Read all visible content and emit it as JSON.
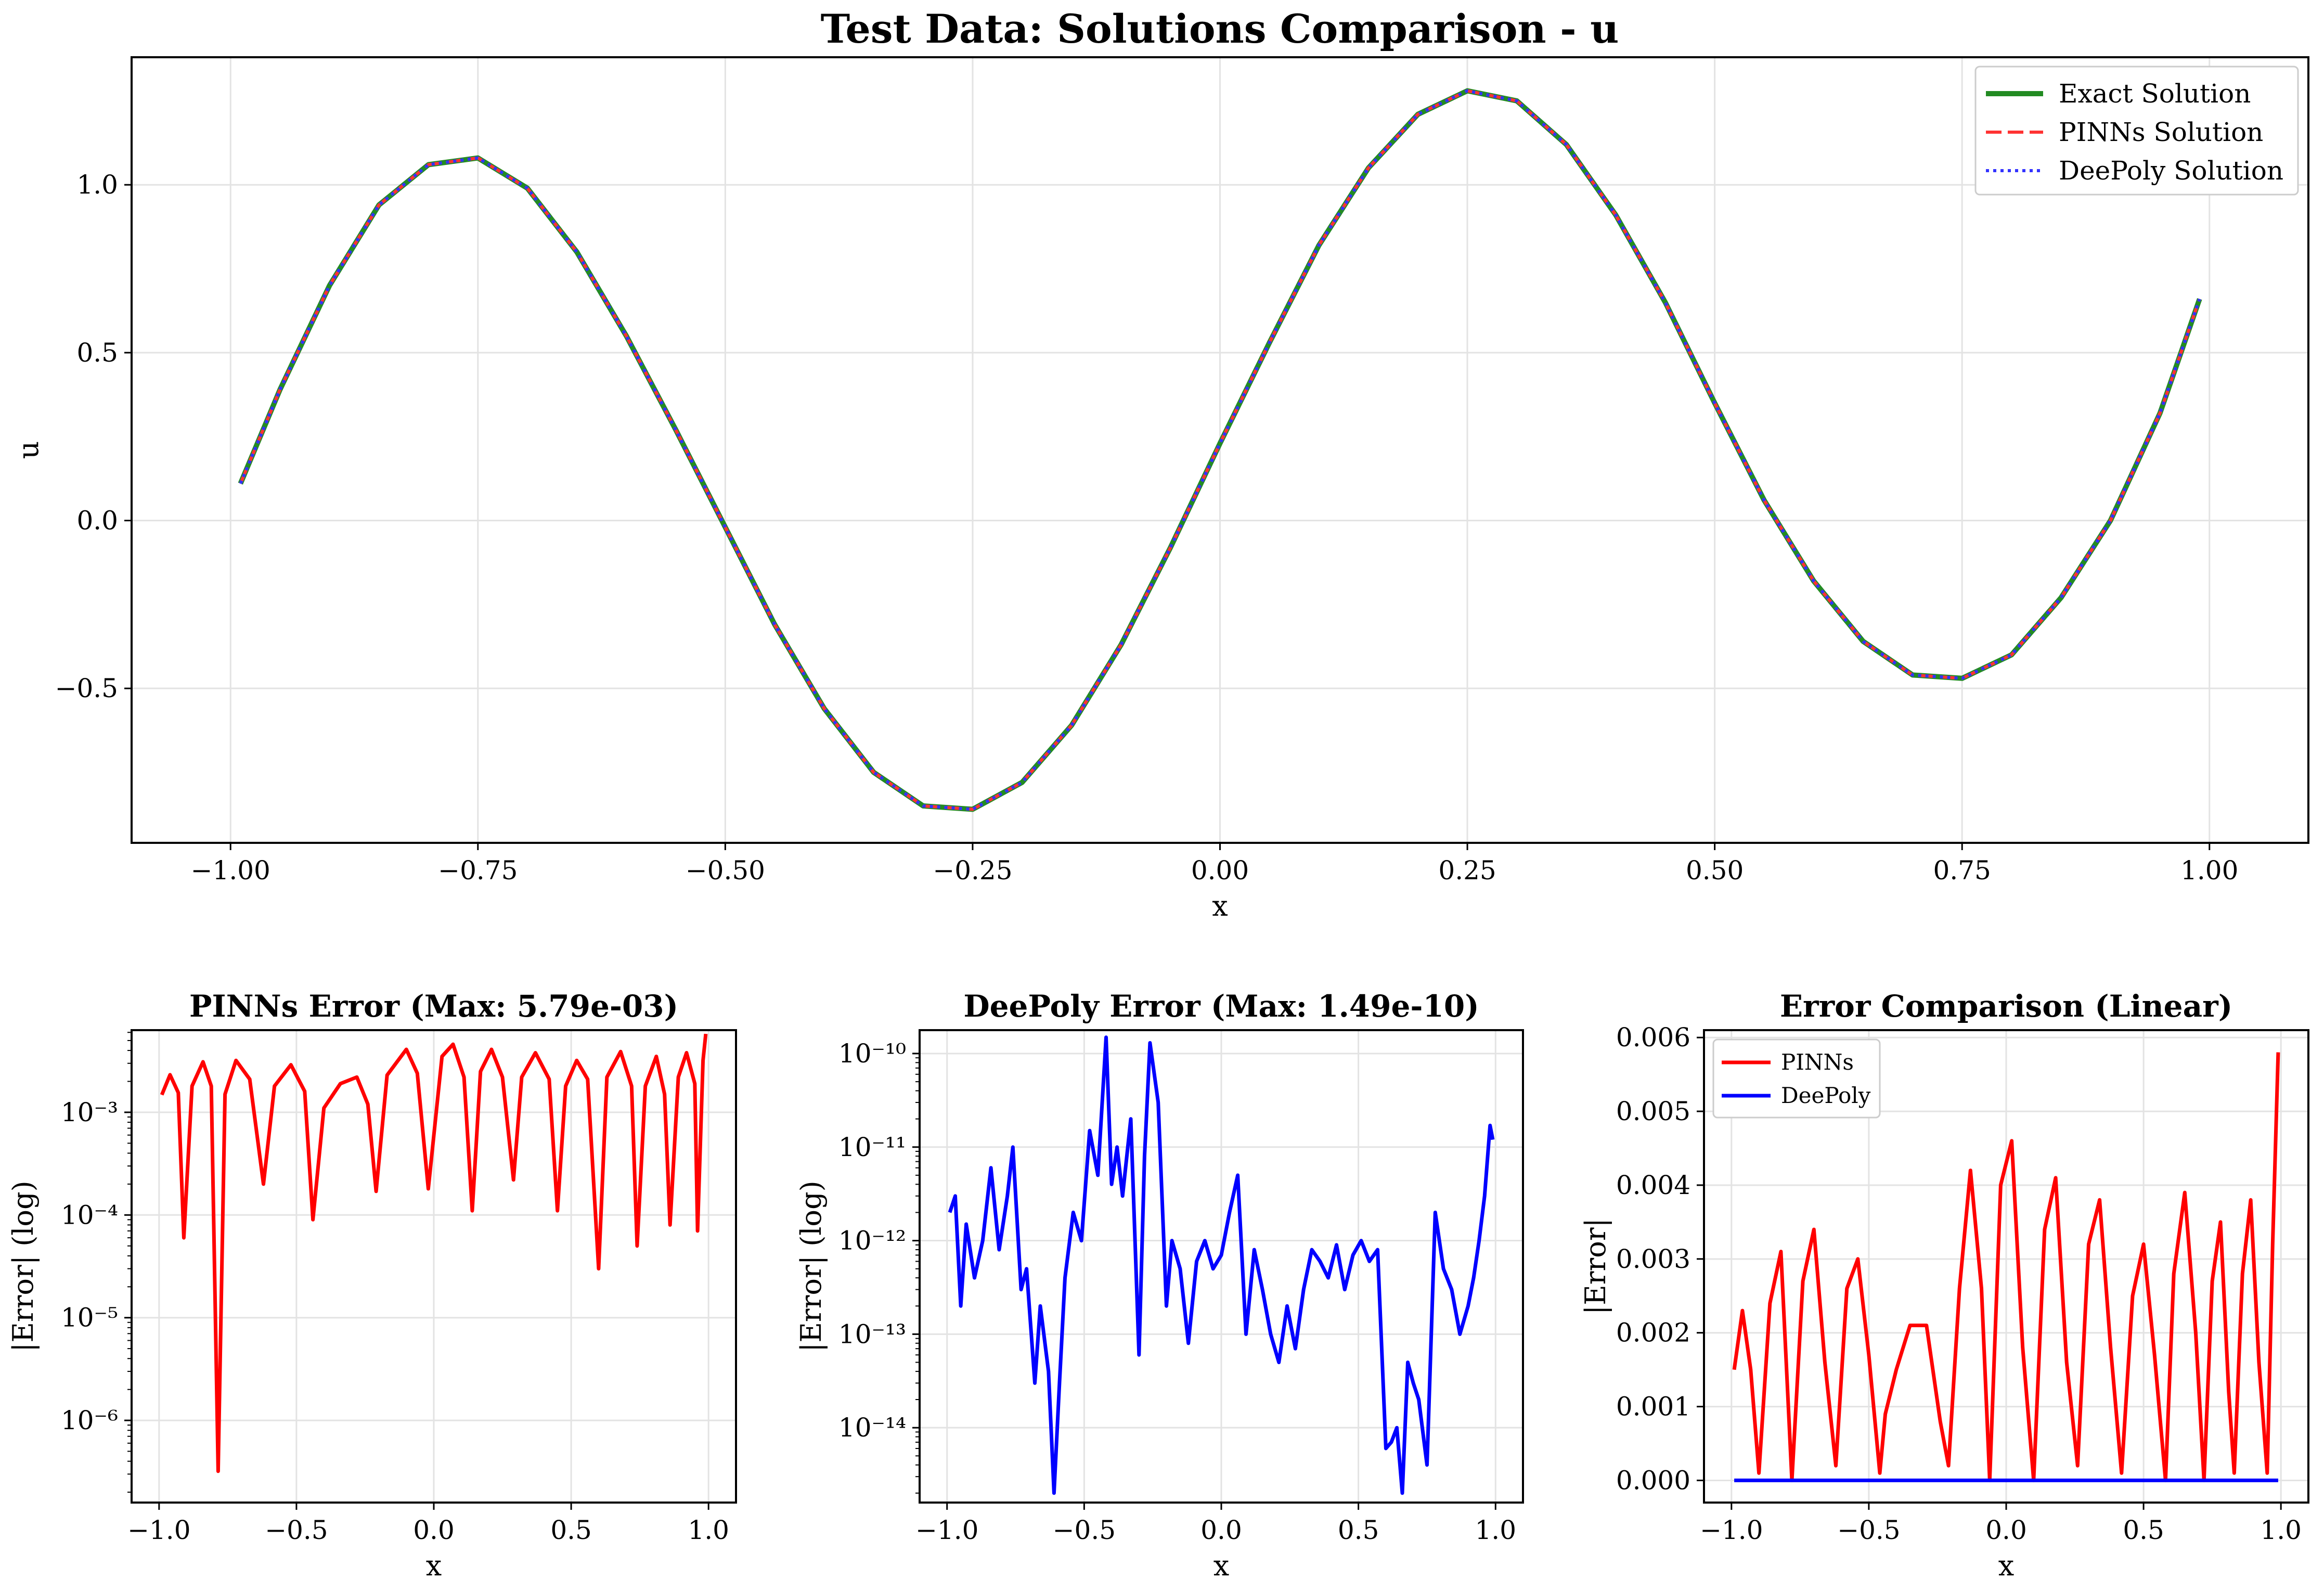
{
  "figure": {
    "title": "Test Data: Solutions Comparison - u"
  },
  "chart_data": [
    {
      "id": "main",
      "type": "line",
      "title": "Test Data: Solutions Comparison - u",
      "xlabel": "x",
      "ylabel": "u",
      "xlim": [
        -1.1,
        1.1
      ],
      "ylim": [
        -0.96,
        1.38
      ],
      "xticks": [
        -1.0,
        -0.75,
        -0.5,
        -0.25,
        0.0,
        0.25,
        0.5,
        0.75,
        1.0
      ],
      "xtick_labels": [
        "−1.00",
        "−0.75",
        "−0.50",
        "−0.25",
        "0.00",
        "0.25",
        "0.50",
        "0.75",
        "1.00"
      ],
      "yticks": [
        -0.5,
        0.0,
        0.5,
        1.0
      ],
      "ytick_labels": [
        "−0.5",
        "0.0",
        "0.5",
        "1.0"
      ],
      "grid": true,
      "legend": "upper right",
      "x": [
        -0.99,
        -0.95,
        -0.9,
        -0.85,
        -0.8,
        -0.75,
        -0.7,
        -0.65,
        -0.6,
        -0.55,
        -0.5,
        -0.45,
        -0.4,
        -0.35,
        -0.3,
        -0.25,
        -0.2,
        -0.15,
        -0.1,
        -0.05,
        0.0,
        0.05,
        0.1,
        0.15,
        0.2,
        0.25,
        0.3,
        0.35,
        0.4,
        0.45,
        0.5,
        0.55,
        0.6,
        0.65,
        0.7,
        0.75,
        0.8,
        0.85,
        0.9,
        0.95,
        0.99
      ],
      "series": [
        {
          "name": "Exact Solution",
          "color": "#228b22",
          "style": "solid",
          "y": [
            0.11,
            0.39,
            0.7,
            0.94,
            1.06,
            1.08,
            0.99,
            0.8,
            0.55,
            0.27,
            -0.02,
            -0.31,
            -0.56,
            -0.75,
            -0.85,
            -0.86,
            -0.78,
            -0.61,
            -0.37,
            -0.08,
            0.23,
            0.53,
            0.82,
            1.05,
            1.21,
            1.28,
            1.25,
            1.12,
            0.91,
            0.65,
            0.35,
            0.06,
            -0.18,
            -0.36,
            -0.46,
            -0.47,
            -0.4,
            -0.23,
            0.0,
            0.32,
            0.66
          ]
        },
        {
          "name": "PINNs Solution",
          "color": "#ff3333",
          "style": "dashed",
          "y": [
            0.11,
            0.39,
            0.7,
            0.94,
            1.06,
            1.08,
            0.99,
            0.8,
            0.55,
            0.27,
            -0.02,
            -0.31,
            -0.56,
            -0.75,
            -0.85,
            -0.86,
            -0.78,
            -0.61,
            -0.37,
            -0.08,
            0.23,
            0.53,
            0.82,
            1.05,
            1.21,
            1.28,
            1.25,
            1.12,
            0.91,
            0.65,
            0.35,
            0.06,
            -0.18,
            -0.36,
            -0.46,
            -0.47,
            -0.4,
            -0.23,
            0.0,
            0.32,
            0.66
          ]
        },
        {
          "name": "DeePoly Solution",
          "color": "#3333ff",
          "style": "dotted",
          "y": [
            0.11,
            0.39,
            0.7,
            0.94,
            1.06,
            1.08,
            0.99,
            0.8,
            0.55,
            0.27,
            -0.02,
            -0.31,
            -0.56,
            -0.75,
            -0.85,
            -0.86,
            -0.78,
            -0.61,
            -0.37,
            -0.08,
            0.23,
            0.53,
            0.82,
            1.05,
            1.21,
            1.28,
            1.25,
            1.12,
            0.91,
            0.65,
            0.35,
            0.06,
            -0.18,
            -0.36,
            -0.46,
            -0.47,
            -0.4,
            -0.23,
            0.0,
            0.32,
            0.66
          ]
        }
      ]
    },
    {
      "id": "pinns_err",
      "type": "line",
      "title": "PINNs Error (Max: 5.79e-03)",
      "xlabel": "x",
      "ylabel": "|Error| (log)",
      "yscale": "log",
      "xlim": [
        -1.1,
        1.1
      ],
      "ylim_exp": [
        -6.8,
        -2.2
      ],
      "xticks": [
        -1.0,
        -0.5,
        0.0,
        0.5,
        1.0
      ],
      "xtick_labels": [
        "−1.0",
        "−0.5",
        "0.0",
        "0.5",
        "1.0"
      ],
      "yticks_exp": [
        -6,
        -5,
        -4,
        -3
      ],
      "ytick_labels": [
        "10⁻⁶",
        "10⁻⁵",
        "10⁻⁴",
        "10⁻³"
      ],
      "grid": true,
      "series": [
        {
          "name": "PINNs",
          "color": "#ff0000",
          "x": [
            -0.99,
            -0.96,
            -0.93,
            -0.91,
            -0.88,
            -0.84,
            -0.81,
            -0.785,
            -0.76,
            -0.72,
            -0.67,
            -0.62,
            -0.58,
            -0.52,
            -0.47,
            -0.44,
            -0.4,
            -0.34,
            -0.28,
            -0.24,
            -0.21,
            -0.17,
            -0.1,
            -0.06,
            -0.02,
            0.03,
            0.07,
            0.11,
            0.14,
            0.17,
            0.21,
            0.25,
            0.29,
            0.32,
            0.37,
            0.42,
            0.45,
            0.48,
            0.52,
            0.56,
            0.6,
            0.63,
            0.68,
            0.72,
            0.74,
            0.77,
            0.81,
            0.84,
            0.86,
            0.89,
            0.92,
            0.95,
            0.96,
            0.98,
            0.99
          ],
          "y": [
            0.00148,
            0.00232,
            0.00155,
            6e-05,
            0.0018,
            0.0031,
            0.0018,
            3.2e-07,
            0.0015,
            0.0032,
            0.0021,
            0.0002,
            0.0018,
            0.0029,
            0.0016,
            9e-05,
            0.0011,
            0.0019,
            0.0022,
            0.0012,
            0.00017,
            0.0023,
            0.0041,
            0.0024,
            0.00018,
            0.0035,
            0.0046,
            0.0022,
            0.00011,
            0.0025,
            0.0041,
            0.0022,
            0.00022,
            0.0022,
            0.0038,
            0.0021,
            0.00011,
            0.0018,
            0.0032,
            0.0021,
            3e-05,
            0.0022,
            0.0039,
            0.0018,
            5e-05,
            0.0018,
            0.0035,
            0.0015,
            8e-05,
            0.0022,
            0.0038,
            0.0019,
            7e-05,
            0.0032,
            0.0058
          ]
        }
      ]
    },
    {
      "id": "deepoly_err",
      "type": "line",
      "title": "DeePoly Error (Max: 1.49e-10)",
      "xlabel": "x",
      "ylabel": "|Error| (log)",
      "yscale": "log",
      "xlim": [
        -1.1,
        1.1
      ],
      "ylim_exp": [
        -14.8,
        -9.75
      ],
      "xticks": [
        -1.0,
        -0.5,
        0.0,
        0.5,
        1.0
      ],
      "xtick_labels": [
        "−1.0",
        "−0.5",
        "0.0",
        "0.5",
        "1.0"
      ],
      "yticks_exp": [
        -14,
        -13,
        -12,
        -11,
        -10
      ],
      "ytick_labels": [
        "10⁻¹⁴",
        "10⁻¹³",
        "10⁻¹²",
        "10⁻¹¹",
        "10⁻¹⁰"
      ],
      "grid": true,
      "series": [
        {
          "name": "DeePoly",
          "color": "#0000ff",
          "x": [
            -0.99,
            -0.97,
            -0.95,
            -0.93,
            -0.9,
            -0.87,
            -0.84,
            -0.81,
            -0.78,
            -0.76,
            -0.73,
            -0.71,
            -0.68,
            -0.66,
            -0.63,
            -0.61,
            -0.59,
            -0.57,
            -0.54,
            -0.51,
            -0.48,
            -0.45,
            -0.42,
            -0.4,
            -0.38,
            -0.36,
            -0.33,
            -0.3,
            -0.28,
            -0.26,
            -0.23,
            -0.2,
            -0.18,
            -0.15,
            -0.12,
            -0.09,
            -0.06,
            -0.03,
            0.0,
            0.03,
            0.06,
            0.09,
            0.12,
            0.15,
            0.18,
            0.21,
            0.24,
            0.27,
            0.3,
            0.33,
            0.36,
            0.39,
            0.42,
            0.45,
            0.48,
            0.51,
            0.54,
            0.57,
            0.6,
            0.62,
            0.64,
            0.66,
            0.68,
            0.7,
            0.72,
            0.75,
            0.78,
            0.81,
            0.84,
            0.87,
            0.9,
            0.92,
            0.94,
            0.96,
            0.98,
            0.99
          ],
          "y": [
            2e-12,
            3e-12,
            2e-13,
            1.5e-12,
            4e-13,
            1e-12,
            6e-12,
            8e-13,
            3e-12,
            1e-11,
            3e-13,
            5e-13,
            3e-14,
            2e-13,
            4e-14,
            2e-15,
            3e-14,
            4e-13,
            2e-12,
            1e-12,
            1.5e-11,
            5e-12,
            1.49e-10,
            4e-12,
            1e-11,
            3e-12,
            2e-11,
            6e-14,
            8e-12,
            1.3e-10,
            3e-11,
            2e-13,
            1e-12,
            5e-13,
            8e-14,
            6e-13,
            1e-12,
            5e-13,
            7e-13,
            2e-12,
            5e-12,
            1e-13,
            8e-13,
            3e-13,
            1e-13,
            5e-14,
            2e-13,
            7e-14,
            3e-13,
            8e-13,
            6e-13,
            4e-13,
            9e-13,
            3e-13,
            7e-13,
            1e-12,
            6e-13,
            8e-13,
            6e-15,
            7e-15,
            1e-14,
            2e-15,
            5e-14,
            3e-14,
            2e-14,
            4e-15,
            2e-12,
            5e-13,
            3e-13,
            1e-13,
            2e-13,
            4e-13,
            1e-12,
            3e-12,
            1.7e-11,
            1.2e-11
          ]
        }
      ]
    },
    {
      "id": "err_linear",
      "type": "line",
      "title": "Error Comparison (Linear)",
      "xlabel": "x",
      "ylabel": "|Error|",
      "xlim": [
        -1.1,
        1.1
      ],
      "ylim": [
        -0.0003,
        0.0061
      ],
      "xticks": [
        -1.0,
        -0.5,
        0.0,
        0.5,
        1.0
      ],
      "xtick_labels": [
        "−1.0",
        "−0.5",
        "0.0",
        "0.5",
        "1.0"
      ],
      "yticks": [
        0.0,
        0.001,
        0.002,
        0.003,
        0.004,
        0.005,
        0.006
      ],
      "ytick_labels": [
        "0.000",
        "0.001",
        "0.002",
        "0.003",
        "0.004",
        "0.005",
        "0.006"
      ],
      "grid": true,
      "legend": "upper left",
      "series": [
        {
          "name": "PINNs",
          "color": "#ff0000",
          "x": [
            -0.99,
            -0.96,
            -0.93,
            -0.9,
            -0.86,
            -0.82,
            -0.78,
            -0.74,
            -0.7,
            -0.66,
            -0.62,
            -0.58,
            -0.54,
            -0.5,
            -0.46,
            -0.44,
            -0.4,
            -0.35,
            -0.29,
            -0.24,
            -0.21,
            -0.17,
            -0.13,
            -0.09,
            -0.06,
            -0.02,
            0.02,
            0.06,
            0.1,
            0.14,
            0.18,
            0.22,
            0.26,
            0.3,
            0.34,
            0.38,
            0.42,
            0.46,
            0.5,
            0.54,
            0.58,
            0.61,
            0.65,
            0.69,
            0.72,
            0.75,
            0.78,
            0.81,
            0.83,
            0.86,
            0.89,
            0.92,
            0.95,
            0.97,
            0.99
          ],
          "y": [
            0.0015,
            0.0023,
            0.0015,
            0.0001,
            0.0024,
            0.0031,
            0.0,
            0.0027,
            0.0034,
            0.0016,
            0.0002,
            0.0026,
            0.003,
            0.0017,
            0.0001,
            0.0009,
            0.0015,
            0.0021,
            0.0021,
            0.0008,
            0.0002,
            0.0026,
            0.0042,
            0.0026,
            0.0,
            0.004,
            0.0046,
            0.0018,
            0.0,
            0.0034,
            0.0041,
            0.0016,
            0.0002,
            0.0032,
            0.0038,
            0.0018,
            0.0001,
            0.0025,
            0.0032,
            0.0017,
            0.0,
            0.0028,
            0.0039,
            0.002,
            0.0,
            0.0027,
            0.0035,
            0.0012,
            0.0001,
            0.0028,
            0.0038,
            0.0016,
            0.0001,
            0.0032,
            0.0058
          ]
        },
        {
          "name": "DeePoly",
          "color": "#0000ff",
          "x": [
            -0.99,
            0.99
          ],
          "y": [
            0.0,
            0.0
          ]
        }
      ]
    }
  ]
}
